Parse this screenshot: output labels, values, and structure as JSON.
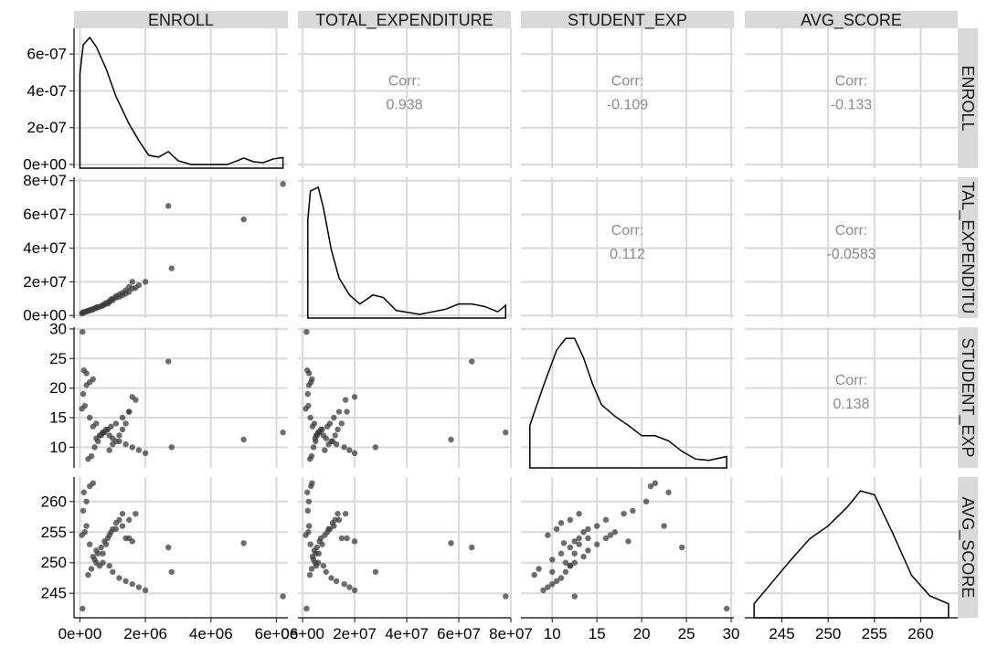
{
  "chart_data": {
    "type": "scatter",
    "variables": [
      "ENROLL",
      "TOTAL_EXPENDITURE",
      "STUDENT_EXP",
      "AVG_SCORE"
    ],
    "column_strips": [
      "ENROLL",
      "TOTAL_EXPENDITURE",
      "STUDENT_EXP",
      "AVG_SCORE"
    ],
    "row_strips": [
      "ENROLL",
      "TAL_EXPENDITU",
      "STUDENT_EXP",
      "AVG_SCORE"
    ],
    "x_ticks": [
      [
        "0e+00",
        "2e+06",
        "4e+06",
        "6e+06"
      ],
      [
        "0e+00",
        "2e+07",
        "4e+07",
        "6e+07",
        "8e+07"
      ],
      [
        "10",
        "15",
        "20",
        "25",
        "30"
      ],
      [
        "245",
        "250",
        "255",
        "260"
      ]
    ],
    "y_ticks": [
      [
        "0e+00",
        "2e-07",
        "4e-07",
        "6e-07"
      ],
      [
        "0e+00",
        "2e+07",
        "4e+07",
        "6e+07",
        "8e+07"
      ],
      [
        "10",
        "15",
        "20",
        "25",
        "30"
      ],
      [
        "245",
        "250",
        "255",
        "260"
      ]
    ],
    "corr_label": "Corr:",
    "correlations": [
      {
        "row": 0,
        "col": 1,
        "value": "0.938"
      },
      {
        "row": 0,
        "col": 2,
        "value": "-0.109"
      },
      {
        "row": 0,
        "col": 3,
        "value": "-0.133"
      },
      {
        "row": 1,
        "col": 2,
        "value": "0.112"
      },
      {
        "row": 1,
        "col": 3,
        "value": "-0.0583"
      },
      {
        "row": 2,
        "col": 3,
        "value": "0.138"
      }
    ],
    "enroll_density": {
      "x": [
        0,
        100000,
        300000,
        500000,
        800000,
        1100000,
        1500000,
        1800000,
        2100000,
        2400000,
        2700000,
        3000000,
        3400000,
        4000000,
        4500000,
        4800000,
        5000000,
        5300000,
        5600000,
        5900000,
        6200000
      ],
      "y": [
        4.9e-07,
        6.5e-07,
        6.9e-07,
        6.4e-07,
        5.2e-07,
        3.7e-07,
        2.2e-07,
        1.3e-07,
        5e-08,
        4e-08,
        7e-08,
        2e-08,
        0,
        0,
        0,
        2e-08,
        3.5e-08,
        1.5e-08,
        1e-08,
        3e-08,
        3.8e-08
      ],
      "ylim": [
        0,
        7.2e-07
      ]
    },
    "total_expenditure_density": {
      "x": [
        2000000,
        3000000,
        6000000,
        8000000,
        11000000,
        14000000,
        18000000,
        22000000,
        27000000,
        31000000,
        36000000,
        45000000,
        55000000,
        60000000,
        65000000,
        70000000,
        75000000,
        78000000
      ],
      "y": [
        0.73,
        0.95,
        0.98,
        0.82,
        0.5,
        0.28,
        0.15,
        0.08,
        0.15,
        0.13,
        0.03,
        0.0,
        0.04,
        0.08,
        0.08,
        0.06,
        0.02,
        0.07
      ]
    },
    "student_exp_density": {
      "x": [
        7.5,
        9,
        10.5,
        11.5,
        12.5,
        13.5,
        14.5,
        15.5,
        17,
        18.5,
        20,
        21.5,
        23,
        24.5,
        26,
        27.5,
        29.5
      ],
      "y": [
        0.3,
        0.6,
        0.88,
        0.97,
        0.97,
        0.82,
        0.62,
        0.46,
        0.37,
        0.3,
        0.22,
        0.22,
        0.18,
        0.1,
        0.04,
        0.03,
        0.06
      ]
    },
    "avg_score_density": {
      "x": [
        242,
        244,
        246,
        248,
        250,
        252,
        253.5,
        255,
        257,
        259,
        261,
        263
      ],
      "y": [
        0.08,
        0.25,
        0.42,
        0.58,
        0.68,
        0.82,
        0.95,
        0.92,
        0.62,
        0.3,
        0.14,
        0.08
      ]
    },
    "observations": {
      "ENROLL": [
        80000,
        120000,
        200000,
        150000,
        60000,
        300000,
        500000,
        400000,
        700000,
        900000,
        1000000,
        1200000,
        1400000,
        1600000,
        1800000,
        2000000,
        250000,
        350000,
        450000,
        550000,
        650000,
        750000,
        850000,
        950000,
        1100000,
        1300000,
        1500000,
        1700000,
        100000,
        200000,
        300000,
        400000,
        500000,
        600000,
        700000,
        800000,
        900000,
        1000000,
        1100000,
        1200000,
        1300000,
        1400000,
        1500000,
        1600000,
        2700000,
        2800000,
        5000000,
        6200000
      ],
      "TOTAL_EXPENDITURE": [
        1500000,
        1800000,
        2500000,
        2200000,
        1200000,
        3000000,
        4500000,
        3800000,
        6000000,
        8000000,
        9000000,
        11000000,
        13000000,
        16000000,
        18000000,
        20000000,
        2800000,
        3500000,
        4200000,
        5000000,
        5500000,
        6500000,
        7000000,
        9500000,
        10500000,
        12000000,
        14000000,
        16500000,
        2000000,
        2400000,
        3200000,
        3600000,
        4800000,
        5200000,
        6200000,
        7500000,
        8500000,
        10000000,
        11500000,
        12500000,
        13500000,
        15000000,
        17000000,
        20000000,
        65000000,
        28000000,
        57000000,
        78000000
      ],
      "STUDENT_EXP": [
        29.5,
        23,
        22.5,
        17,
        16.5,
        15,
        14,
        13.5,
        12.5,
        12,
        11.5,
        11,
        10.5,
        10,
        9.5,
        9,
        8,
        8.5,
        10,
        11,
        12,
        12.5,
        13,
        13.5,
        14,
        15,
        16,
        18,
        19,
        20.5,
        21,
        21.5,
        11.5,
        12,
        12.5,
        13,
        9.5,
        10.5,
        11,
        12,
        13,
        14,
        16,
        18.5,
        24.5,
        10,
        11.3,
        12.5
      ],
      "AVG_SCORE": [
        242.5,
        261.5,
        256,
        255,
        254.5,
        253,
        252,
        251,
        250,
        249.5,
        248.5,
        247.5,
        247,
        246.5,
        246,
        245.5,
        248,
        249,
        250.5,
        251.5,
        252.5,
        253.5,
        254,
        255,
        255.5,
        256,
        257,
        258,
        258.5,
        260,
        262.5,
        263,
        250,
        249.5,
        251.5,
        253,
        254.5,
        255.5,
        256.5,
        257,
        258,
        254,
        254,
        253.5,
        252.5,
        248.5,
        253.2,
        244.5
      ]
    }
  }
}
